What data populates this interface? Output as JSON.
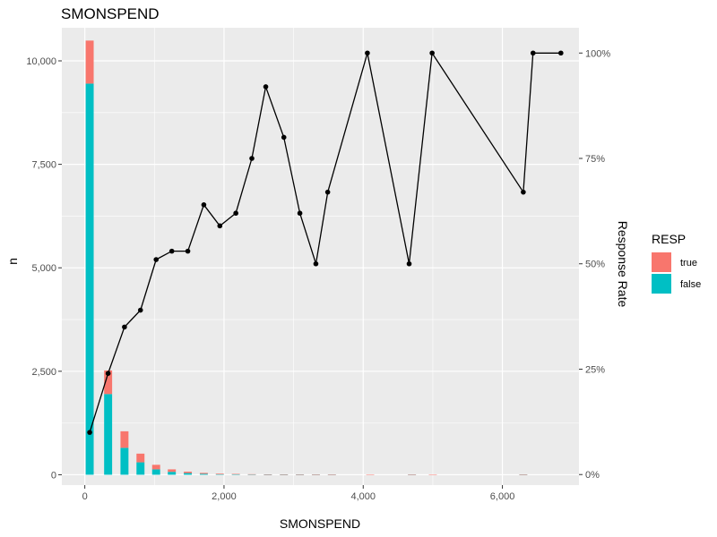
{
  "chart_data": {
    "type": "bar+line",
    "title": "SMONSPEND",
    "xlabel": "SMONSPEND",
    "ylabel": "n",
    "y2label": "Response Rate",
    "xlim": [
      -330,
      7100
    ],
    "ylim": [
      -250,
      10800
    ],
    "y2lim": [
      -0.025,
      1.06
    ],
    "x_ticks": [
      0,
      2000,
      4000,
      6000
    ],
    "x_tick_labels": [
      "0",
      "2,000",
      "4,000",
      "6,000"
    ],
    "y_ticks": [
      0,
      2500,
      5000,
      7500,
      10000
    ],
    "y_tick_labels": [
      "0",
      "2,500",
      "5,000",
      "7,500",
      "10,000"
    ],
    "y2_ticks": [
      0,
      0.25,
      0.5,
      0.75,
      1.0
    ],
    "y2_tick_labels": [
      "0%",
      "25%",
      "50%",
      "75%",
      "100%"
    ],
    "legend": {
      "title": "RESP",
      "position": "right",
      "entries": [
        {
          "label": "true",
          "color": "#F8766D"
        },
        {
          "label": "false",
          "color": "#00BFC4"
        }
      ]
    },
    "colors": {
      "panel": "#EBEBEB",
      "grid": "#FFFFFF",
      "true": "#F8766D",
      "false": "#00BFC4",
      "line": "#000000"
    },
    "bars": {
      "bin_width": 115,
      "x": [
        70,
        335,
        570,
        800,
        1025,
        1250,
        1480,
        1710,
        1940,
        2170,
        2400,
        2630,
        2860,
        3090,
        3320,
        3550,
        4100,
        4700,
        5000,
        6300
      ],
      "false": [
        9450,
        1950,
        650,
        300,
        130,
        70,
        40,
        22,
        12,
        8,
        5,
        3,
        2,
        2,
        1,
        1,
        0,
        1,
        0,
        1
      ],
      "true": [
        1040,
        570,
        400,
        210,
        110,
        60,
        35,
        23,
        16,
        12,
        8,
        6,
        4,
        3,
        2,
        1,
        1,
        1,
        1,
        2
      ]
    },
    "series": [
      {
        "type": "line",
        "x": [
          70,
          335,
          570,
          800,
          1025,
          1250,
          1480,
          1710,
          1940,
          2170,
          2400,
          2600,
          2860,
          3090,
          3320,
          3490,
          4060,
          4660,
          4990,
          6300,
          6440,
          6840
        ],
        "values": [
          0.1,
          0.24,
          0.35,
          0.39,
          0.51,
          0.53,
          0.53,
          0.64,
          0.59,
          0.62,
          0.75,
          0.92,
          0.8,
          0.62,
          0.5,
          0.67,
          1.0,
          0.5,
          1.0,
          0.67,
          1.0,
          1.0
        ]
      }
    ]
  }
}
